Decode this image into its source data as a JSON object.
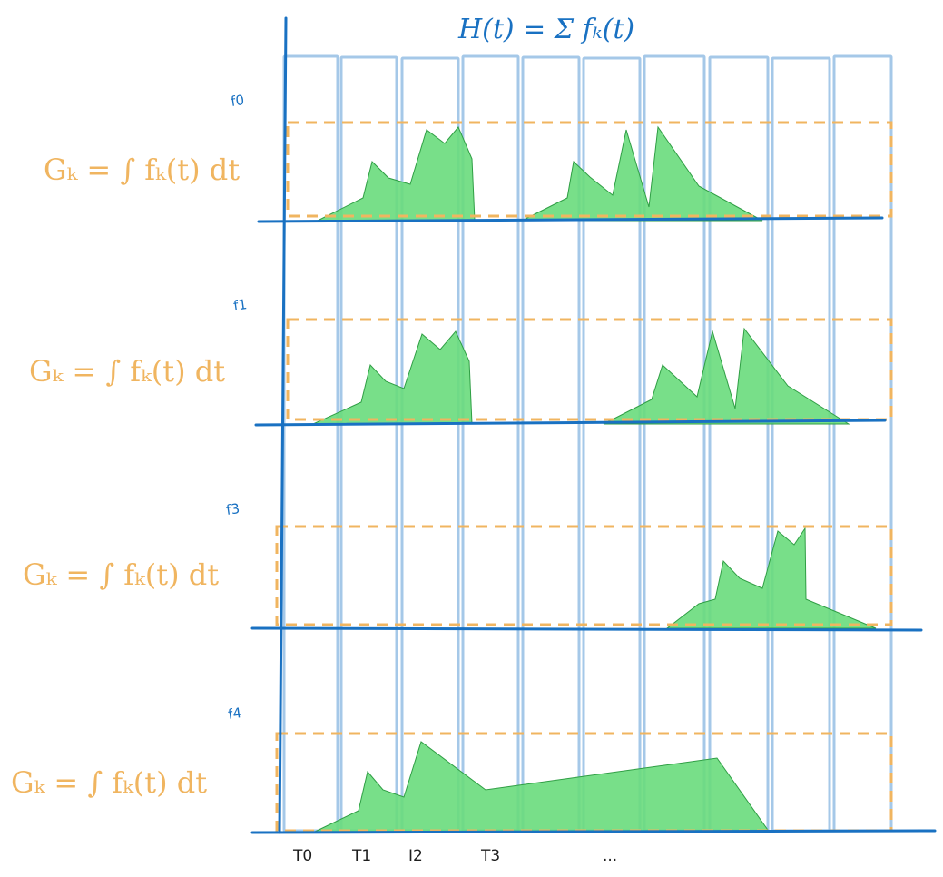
{
  "title": "H(t) = Σ fₖ(t)",
  "rows": [
    {
      "label": "f0",
      "formula": "Gₖ = ∫ fₖ(t) dt"
    },
    {
      "label": "f1",
      "formula": "Gₖ = ∫ fₖ(t) dt"
    },
    {
      "label": "f3",
      "formula": "Gₖ = ∫ fₖ(t) dt"
    },
    {
      "label": "f4",
      "formula": "Gₖ = ∫ fₖ(t) dt"
    }
  ],
  "time_labels": [
    "T0",
    "T1",
    "I2",
    "T3",
    "..."
  ],
  "colors": {
    "axis": "#1971c2",
    "column": "#a5c8e8",
    "window": "#f0b560",
    "area_fill": "#69db7c",
    "area_stroke": "#2f9e44"
  }
}
